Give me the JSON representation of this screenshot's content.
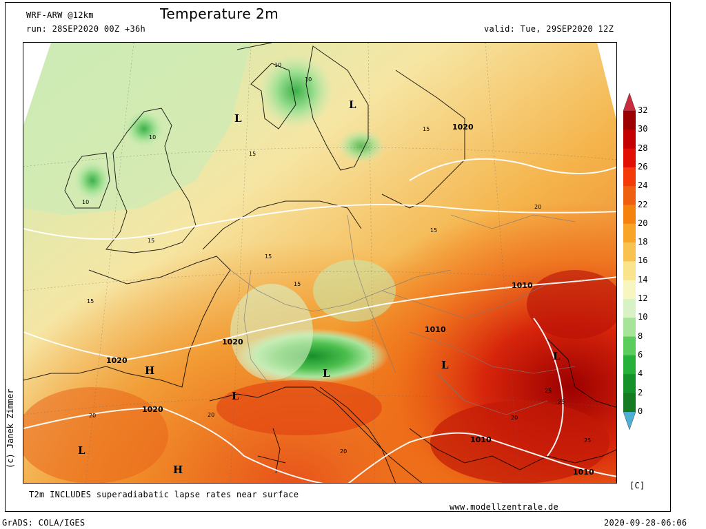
{
  "header": {
    "model": "WRF-ARW @12km",
    "title": "Temperature 2m",
    "run": "run: 28SEP2020 00Z +36h",
    "valid": "valid: Tue, 29SEP2020 12Z"
  },
  "footer": {
    "note": "T2m INCLUDES superadiabatic lapse rates near surface",
    "website": "www.modellzentrale.de",
    "grads": "GrADS: COLA/IGES",
    "timestamp": "2020-09-28-06:06"
  },
  "credit": "(c) Janek Zimmer",
  "unit": "[C]",
  "colorbar": {
    "labels": [
      "32",
      "30",
      "28",
      "26",
      "24",
      "22",
      "20",
      "18",
      "16",
      "14",
      "12",
      "10",
      "8",
      "6",
      "4",
      "2",
      "0"
    ],
    "colors": [
      "#c92c3c",
      "#9c0000",
      "#c40000",
      "#e20f05",
      "#f53a0a",
      "#ef5f10",
      "#f5820f",
      "#f7a428",
      "#f7c250",
      "#fae38d",
      "#f7f5c0",
      "#d8f2c6",
      "#a6e49a",
      "#5acd5c",
      "#27b03a",
      "#16922a",
      "#157c21",
      "#4fb0d6"
    ]
  },
  "map": {
    "pressure_labels": [
      "1020",
      "1020",
      "1020",
      "1020",
      "1010",
      "1010",
      "1010",
      "1010"
    ],
    "highs": [
      "H",
      "H"
    ],
    "lows": [
      "L",
      "L",
      "L",
      "L",
      "L",
      "L",
      "L"
    ],
    "isotherm_labels": [
      "10",
      "10",
      "10",
      "10",
      "15",
      "15",
      "15",
      "15",
      "15",
      "15",
      "15",
      "20",
      "20",
      "20",
      "20",
      "20",
      "25",
      "25",
      "25"
    ]
  }
}
